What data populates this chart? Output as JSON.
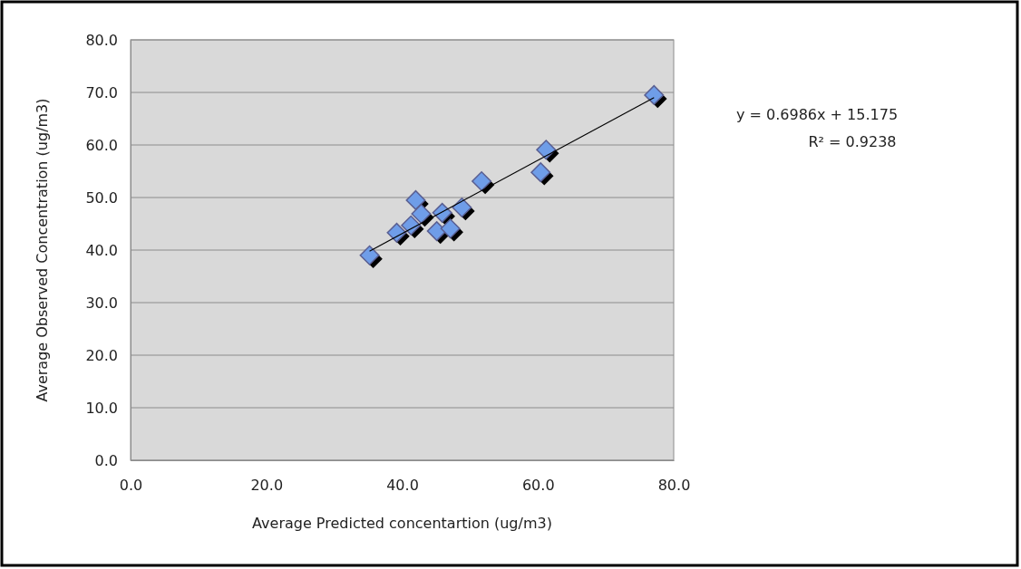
{
  "chart_data": {
    "type": "scatter",
    "xlabel": "Average Predicted concentartion (ug/m3)",
    "ylabel": "Average Observed Concentration (ug/m3)",
    "xlim": [
      0,
      80
    ],
    "xticks": [
      {
        "value": 0,
        "label": "0.0"
      },
      {
        "value": 20,
        "label": "20.0"
      },
      {
        "value": 40,
        "label": "40.0"
      },
      {
        "value": 60,
        "label": "60.0"
      },
      {
        "value": 80,
        "label": "80.0"
      }
    ],
    "ylim": [
      0,
      80
    ],
    "yticks": [
      {
        "value": 0,
        "label": "0.0"
      },
      {
        "value": 10,
        "label": "10.0"
      },
      {
        "value": 20,
        "label": "20.0"
      },
      {
        "value": 30,
        "label": "30.0"
      },
      {
        "value": 40,
        "label": "40.0"
      },
      {
        "value": 50,
        "label": "50.0"
      },
      {
        "value": 60,
        "label": "60.0"
      },
      {
        "value": 70,
        "label": "70.0"
      },
      {
        "value": 80,
        "label": "80.0"
      }
    ],
    "grid": "y",
    "marker": "diamond",
    "series": [
      {
        "color": "#6f9de8",
        "x": [
          35.2,
          39.2,
          42.0,
          42.8,
          41.3,
          45.9,
          45.1,
          47.1,
          48.8,
          51.7,
          61.2,
          60.4,
          77.1
        ],
        "values": [
          39.0,
          43.3,
          49.5,
          46.9,
          44.7,
          47.1,
          43.6,
          44.1,
          48.1,
          53.1,
          59.1,
          54.8,
          69.5
        ]
      },
      {
        "type": "line",
        "color": "#000000",
        "x": [
          35.2,
          77.1
        ],
        "values": [
          39.8,
          69.0
        ],
        "marker": "none",
        "line_style": "solid"
      }
    ],
    "annotations": [
      "y = 0.6986x + 15.175",
      "R² = 0.9238"
    ]
  }
}
